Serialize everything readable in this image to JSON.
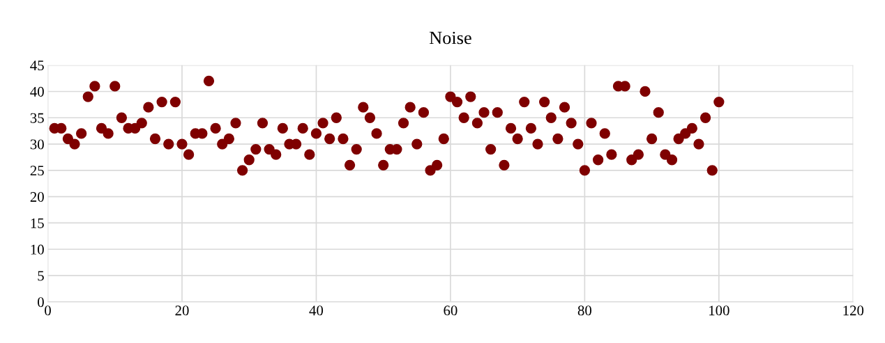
{
  "chart_data": {
    "type": "scatter",
    "title": "Noise",
    "x": [
      1,
      2,
      3,
      4,
      5,
      6,
      7,
      8,
      9,
      10,
      11,
      12,
      13,
      14,
      15,
      16,
      17,
      18,
      19,
      20,
      21,
      22,
      23,
      24,
      25,
      26,
      27,
      28,
      29,
      30,
      31,
      32,
      33,
      34,
      35,
      36,
      37,
      38,
      39,
      40,
      41,
      42,
      43,
      44,
      45,
      46,
      47,
      48,
      49,
      50,
      51,
      52,
      53,
      54,
      55,
      56,
      57,
      58,
      59,
      60,
      61,
      62,
      63,
      64,
      65,
      66,
      67,
      68,
      69,
      70,
      71,
      72,
      73,
      74,
      75,
      76,
      77,
      78,
      79,
      80,
      81,
      82,
      83,
      84,
      85,
      86,
      87,
      88,
      89,
      90,
      91,
      92,
      93,
      94,
      95,
      96,
      97,
      98,
      99,
      100
    ],
    "series": [
      {
        "color": "#7f0000",
        "values": [
          33,
          33,
          31,
          30,
          32,
          39,
          41,
          33,
          32,
          41,
          35,
          33,
          33,
          34,
          37,
          31,
          38,
          30,
          38,
          30,
          28,
          32,
          32,
          42,
          33,
          30,
          31,
          34,
          25,
          27,
          29,
          34,
          29,
          28,
          33,
          30,
          30,
          33,
          28,
          32,
          34,
          31,
          35,
          31,
          26,
          29,
          37,
          35,
          32,
          26,
          29,
          29,
          34,
          37,
          30,
          36,
          25,
          26,
          31,
          39,
          38,
          35,
          39,
          34,
          36,
          29,
          36,
          26,
          33,
          31,
          38,
          33,
          30,
          38,
          35,
          31,
          37,
          34,
          30,
          25,
          34,
          27,
          32,
          28,
          41,
          41,
          27,
          28,
          40,
          31,
          36,
          28,
          27,
          31,
          32,
          33,
          30,
          35,
          25,
          38
        ]
      }
    ],
    "xlim": [
      0,
      120
    ],
    "xticks": [
      0,
      20,
      40,
      60,
      80,
      100,
      120
    ],
    "ylim": [
      0,
      45
    ],
    "yticks": [
      0,
      5,
      10,
      15,
      20,
      25,
      30,
      35,
      40,
      45
    ],
    "grid": true,
    "marker": "circle",
    "legend": false
  }
}
